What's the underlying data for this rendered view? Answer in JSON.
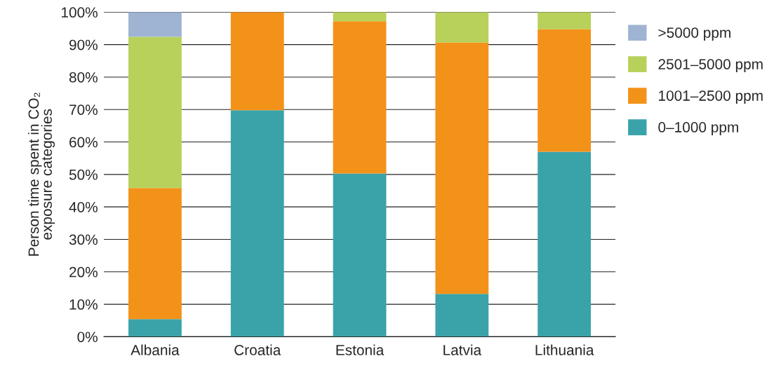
{
  "chart_data": {
    "type": "bar",
    "stacked": true,
    "ylabel": "Person time spent in CO₂\nexposure categories",
    "categories": [
      "Albania",
      "Croatia",
      "Estonia",
      "Latvia",
      "Lithuania"
    ],
    "series": [
      {
        "name": "0–1000 ppm",
        "color": "#3aa3a9",
        "values": [
          5.4,
          69.8,
          50.3,
          13.2,
          57.0
        ]
      },
      {
        "name": "1001–2500 ppm",
        "color": "#f39219",
        "values": [
          40.4,
          30.2,
          46.9,
          77.5,
          37.8
        ]
      },
      {
        "name": "2501–5000 ppm",
        "color": "#b7d15a",
        "values": [
          46.6,
          null,
          2.8,
          9.3,
          5.2
        ]
      },
      {
        "name": ">5000 ppm",
        "color": "#9fb3d3",
        "values": [
          7.6,
          null,
          null,
          null,
          null
        ]
      }
    ],
    "ylim": [
      0,
      100
    ],
    "yticks": [
      {
        "value": 0,
        "label": "0%"
      },
      {
        "value": 10,
        "label": "10%"
      },
      {
        "value": 20,
        "label": "20%"
      },
      {
        "value": 30,
        "label": "30%"
      },
      {
        "value": 40,
        "label": "40%"
      },
      {
        "value": 50,
        "label": "50%"
      },
      {
        "value": 60,
        "label": "60%"
      },
      {
        "value": 70,
        "label": "70%"
      },
      {
        "value": 80,
        "label": "80%"
      },
      {
        "value": 90,
        "label": "90%"
      },
      {
        "value": 100,
        "label": "100%"
      }
    ],
    "grid": "y",
    "legend": "right"
  }
}
